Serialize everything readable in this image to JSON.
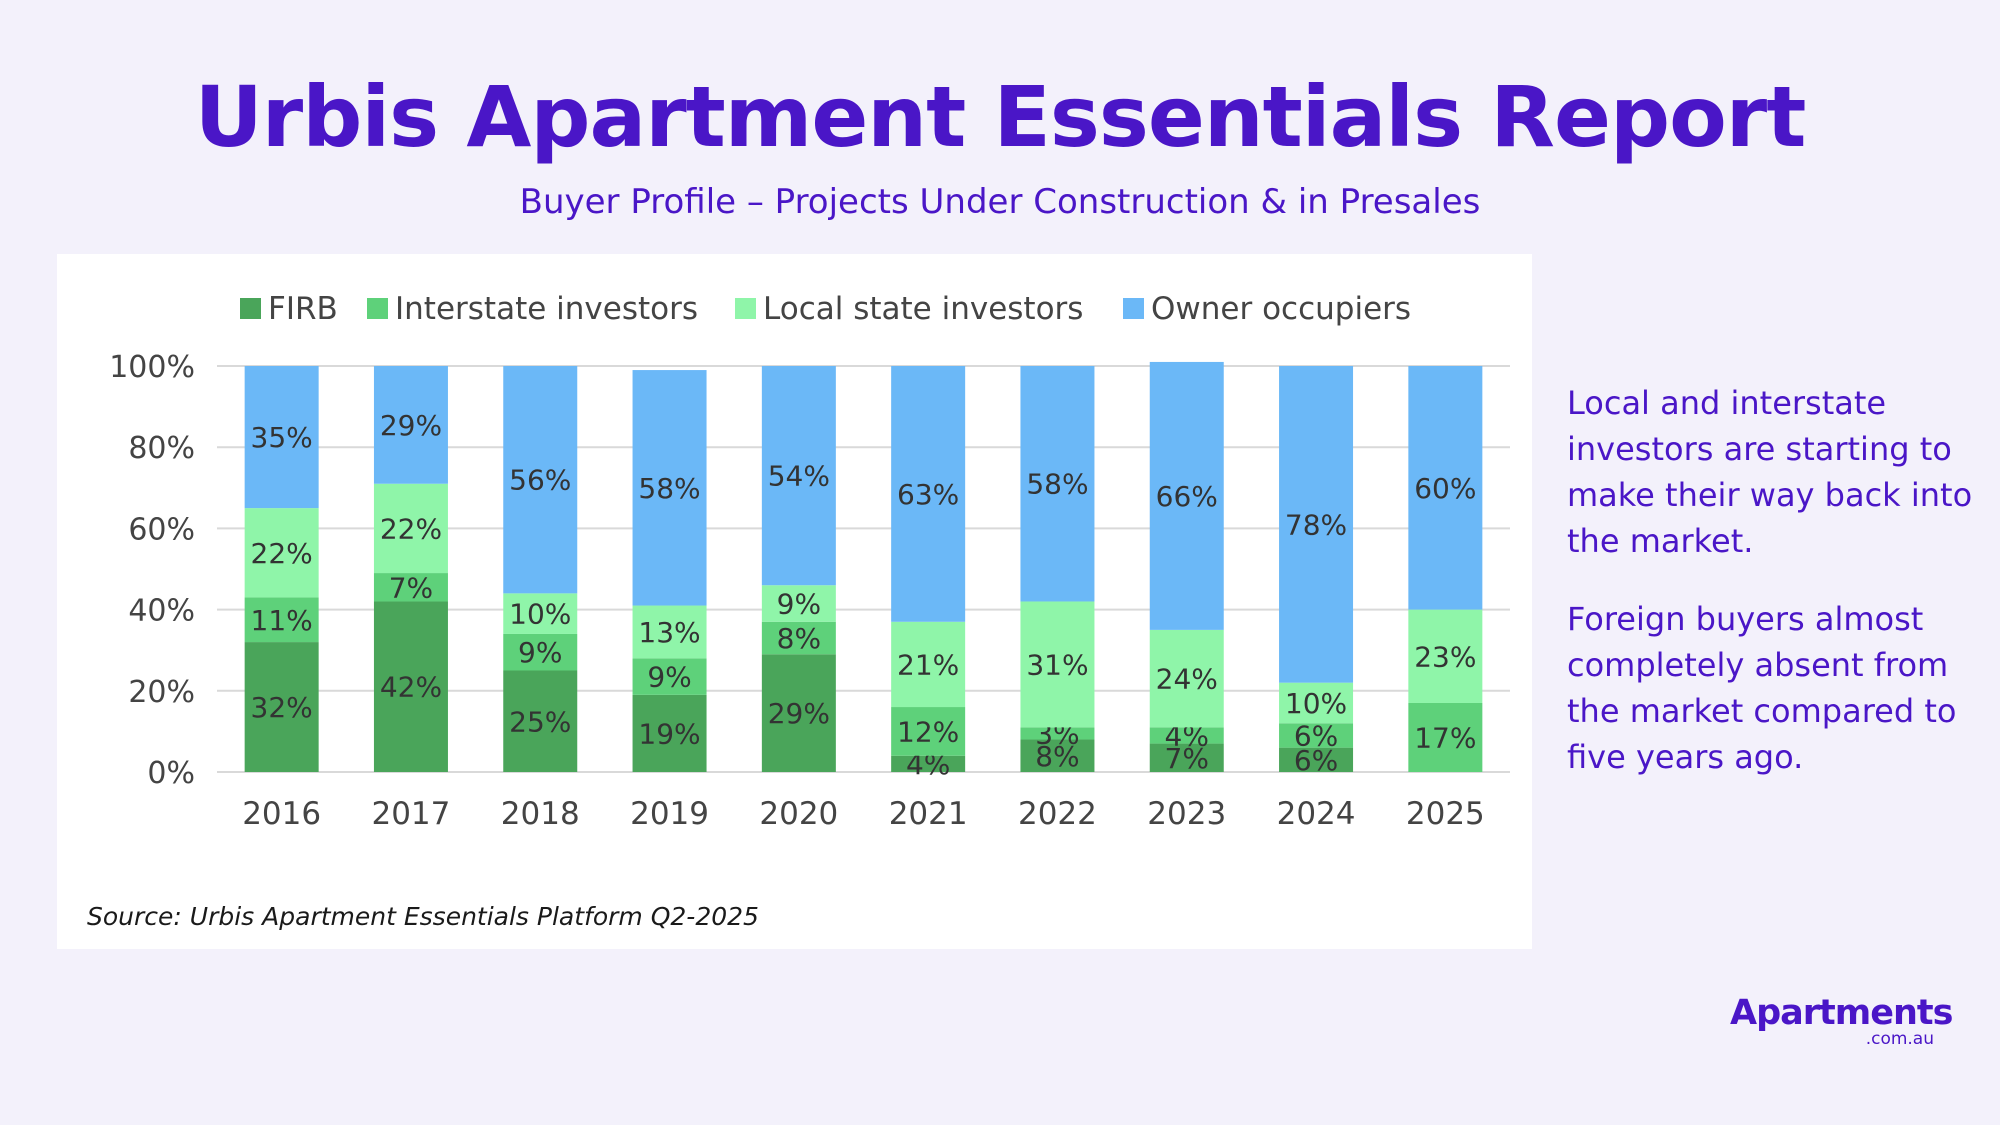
{
  "header": {
    "title": "Urbis Apartment Essentials Report",
    "subtitle": "Buyer Profile – Projects Under Construction & in Presales"
  },
  "source": "Source: Urbis Apartment Essentials Platform Q2-2025",
  "notes": [
    "Local and interstate investors are starting to make their way back into the market.",
    "Foreign buyers almost completely absent from the market compared to five years ago."
  ],
  "brand": {
    "name": "Apartments",
    "domain": ".com.au"
  },
  "chart_data": {
    "type": "bar",
    "stacked": true,
    "categories": [
      "2016",
      "2017",
      "2018",
      "2019",
      "2020",
      "2021",
      "2022",
      "2023",
      "2024",
      "2025"
    ],
    "ylim": [
      0,
      100
    ],
    "yticks": [
      "0%",
      "20%",
      "40%",
      "60%",
      "80%",
      "100%"
    ],
    "grid": true,
    "legend": "top",
    "series": [
      {
        "name": "FIRB",
        "color": "#4aa55a",
        "values": [
          32,
          42,
          25,
          19,
          29,
          4,
          8,
          7,
          6,
          0
        ],
        "labels": [
          "32%",
          "42%",
          "25%",
          "19%",
          "29%",
          "4%",
          "8%",
          "7%",
          "6%",
          ""
        ]
      },
      {
        "name": "Interstate investors",
        "color": "#5ed17a",
        "values": [
          11,
          7,
          9,
          9,
          8,
          12,
          3,
          4,
          6,
          17
        ],
        "labels": [
          "11%",
          "7%",
          "9%",
          "9%",
          "8%",
          "12%",
          "3%",
          "4%",
          "6%",
          "17%"
        ]
      },
      {
        "name": "Local state investors",
        "color": "#8ff5a9",
        "values": [
          22,
          22,
          10,
          13,
          9,
          21,
          31,
          24,
          10,
          23
        ],
        "labels": [
          "22%",
          "22%",
          "10%",
          "13%",
          "9%",
          "21%",
          "31%",
          "24%",
          "10%",
          "23%"
        ]
      },
      {
        "name": "Owner occupiers",
        "color": "#6bb8f7",
        "values": [
          35,
          29,
          56,
          58,
          54,
          63,
          58,
          66,
          78,
          60
        ],
        "labels": [
          "35%",
          "29%",
          "56%",
          "58%",
          "54%",
          "63%",
          "58%",
          "66%",
          "78%",
          "60%"
        ]
      }
    ]
  }
}
